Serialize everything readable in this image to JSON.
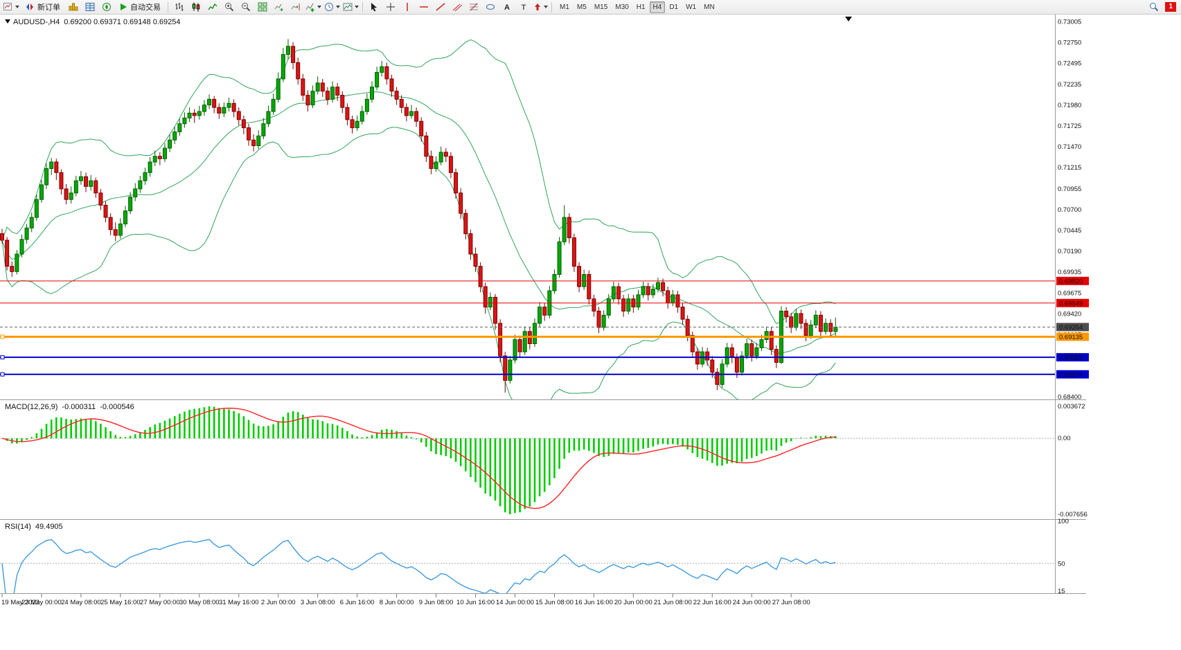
{
  "toolbar": {
    "new_order_label": "新订单",
    "autotrading_label": "自动交易",
    "glyph_text_tool": "A",
    "glyph_label_tool": "T",
    "timeframes": [
      "M1",
      "M5",
      "M15",
      "M30",
      "H1",
      "H4",
      "D1",
      "W1",
      "MN"
    ],
    "active_timeframe": "H4",
    "notifications_count": "1"
  },
  "chart_data": {
    "type": "candlestick",
    "symbol_period": "AUDUSD-,H4",
    "ohlc_text": "0.69200 0.69371 0.69148 0.69254",
    "colors": {
      "up": "#00a800",
      "up_border": "#005f00",
      "down": "#dc1414",
      "down_border": "#7a0000",
      "bollinger": "#2fa35a",
      "macd_hist": "#00cc00",
      "macd_signal": "#ff2222",
      "rsi": "#3d9be0"
    },
    "bollinger": {
      "period": 20,
      "deviation": 2
    },
    "price_axis_labels": [
      "0.73005",
      "0.72750",
      "0.72495",
      "0.72235",
      "0.71980",
      "0.71725",
      "0.71470",
      "0.71215",
      "0.70955",
      "0.70700",
      "0.70445",
      "0.70190",
      "0.69935",
      "0.69675",
      "0.69420",
      "0.69165",
      "0.68910",
      "0.68655",
      "0.68400"
    ],
    "hlines": [
      {
        "label": "0.69820",
        "price": 0.6982,
        "color": "#e60000",
        "width": 1,
        "dashed": false,
        "handle": false,
        "box": "#e60000"
      },
      {
        "label": "0.69549",
        "price": 0.69549,
        "color": "#e60000",
        "width": 1,
        "dashed": false,
        "handle": false,
        "box": "#e60000"
      },
      {
        "label": "0.69254",
        "price": 0.69254,
        "color": "#666666",
        "width": 1,
        "dashed": true,
        "handle": false,
        "box": "#4d4d4d"
      },
      {
        "label": "0.69135",
        "price": 0.69135,
        "color": "#ff9900",
        "width": 3,
        "dashed": false,
        "handle": true,
        "box": "#ff9900"
      },
      {
        "label": "0.68883",
        "price": 0.68883,
        "color": "#0000cc",
        "width": 2,
        "dashed": false,
        "handle": true,
        "box": "#0000cc"
      },
      {
        "label": "0.68674",
        "price": 0.68674,
        "color": "#0000cc",
        "width": 2,
        "dashed": false,
        "handle": true,
        "box": "#0000cc"
      }
    ],
    "time_labels": [
      "19 May 2022",
      "23 May 00:00",
      "24 May 08:00",
      "25 May 16:00",
      "27 May 00:00",
      "30 May 08:00",
      "31 May 16:00",
      "2 Jun 00:00",
      "3 Jun 08:00",
      "6 Jun 16:00",
      "8 Jun 00:00",
      "9 Jun 08:00",
      "10 Jun 16:00",
      "14 Jun 00:00",
      "15 Jun 08:00",
      "16 Jun 16:00",
      "20 Jun 00:00",
      "21 Jun 08:00",
      "22 Jun 16:00",
      "24 Jun 00:00",
      "27 Jun 08:00"
    ],
    "candles": [
      [
        0.704,
        0.7046,
        0.7028,
        0.7032
      ],
      [
        0.7032,
        0.7036,
        0.6995,
        0.7
      ],
      [
        0.7,
        0.7006,
        0.6987,
        0.69935
      ],
      [
        0.69935,
        0.702,
        0.699,
        0.7015
      ],
      [
        0.7015,
        0.7039,
        0.7011,
        0.7033
      ],
      [
        0.7033,
        0.7052,
        0.7028,
        0.7047
      ],
      [
        0.7047,
        0.7066,
        0.7042,
        0.706
      ],
      [
        0.706,
        0.7088,
        0.7056,
        0.7082
      ],
      [
        0.7082,
        0.7106,
        0.7078,
        0.71
      ],
      [
        0.71,
        0.7126,
        0.7095,
        0.712
      ],
      [
        0.712,
        0.7133,
        0.7112,
        0.7128
      ],
      [
        0.7128,
        0.7132,
        0.7106,
        0.7115
      ],
      [
        0.7115,
        0.7119,
        0.7088,
        0.7095
      ],
      [
        0.7095,
        0.7101,
        0.7076,
        0.7082
      ],
      [
        0.7082,
        0.7098,
        0.7077,
        0.709
      ],
      [
        0.709,
        0.7111,
        0.7086,
        0.7105
      ],
      [
        0.7105,
        0.7117,
        0.71,
        0.711
      ],
      [
        0.711,
        0.7115,
        0.7091,
        0.7098
      ],
      [
        0.7098,
        0.7112,
        0.7093,
        0.7105
      ],
      [
        0.7105,
        0.7109,
        0.7084,
        0.709
      ],
      [
        0.709,
        0.7095,
        0.7069,
        0.7075
      ],
      [
        0.7075,
        0.708,
        0.7054,
        0.706
      ],
      [
        0.706,
        0.7065,
        0.7038,
        0.7045
      ],
      [
        0.7045,
        0.7054,
        0.7031,
        0.7038
      ],
      [
        0.7038,
        0.7059,
        0.7034,
        0.7052
      ],
      [
        0.7052,
        0.7074,
        0.7048,
        0.7068
      ],
      [
        0.7068,
        0.7091,
        0.7064,
        0.7085
      ],
      [
        0.7085,
        0.7102,
        0.708,
        0.7095
      ],
      [
        0.7095,
        0.7111,
        0.709,
        0.7105
      ],
      [
        0.7105,
        0.7121,
        0.71,
        0.7115
      ],
      [
        0.7115,
        0.7134,
        0.711,
        0.7128
      ],
      [
        0.7128,
        0.7142,
        0.7123,
        0.7135
      ],
      [
        0.7135,
        0.714,
        0.7124,
        0.7132
      ],
      [
        0.7132,
        0.7151,
        0.7128,
        0.7145
      ],
      [
        0.7145,
        0.7162,
        0.714,
        0.7155
      ],
      [
        0.7155,
        0.7171,
        0.715,
        0.7165
      ],
      [
        0.7165,
        0.7181,
        0.716,
        0.7175
      ],
      [
        0.7175,
        0.7189,
        0.717,
        0.7182
      ],
      [
        0.7182,
        0.7195,
        0.7177,
        0.7188
      ],
      [
        0.7188,
        0.7193,
        0.7176,
        0.7185
      ],
      [
        0.7185,
        0.7197,
        0.718,
        0.719
      ],
      [
        0.719,
        0.7204,
        0.7185,
        0.7198
      ],
      [
        0.7198,
        0.7211,
        0.7193,
        0.7205
      ],
      [
        0.7205,
        0.7209,
        0.7188,
        0.7195
      ],
      [
        0.7195,
        0.72,
        0.7181,
        0.7188
      ],
      [
        0.7188,
        0.7201,
        0.7183,
        0.7195
      ],
      [
        0.7195,
        0.7207,
        0.719,
        0.72
      ],
      [
        0.72,
        0.7205,
        0.7183,
        0.719
      ],
      [
        0.719,
        0.7195,
        0.7173,
        0.718
      ],
      [
        0.718,
        0.7185,
        0.7162,
        0.717
      ],
      [
        0.717,
        0.7175,
        0.7148,
        0.7155
      ],
      [
        0.7155,
        0.7162,
        0.7141,
        0.7148
      ],
      [
        0.7148,
        0.7167,
        0.7144,
        0.716
      ],
      [
        0.716,
        0.7182,
        0.7156,
        0.7175
      ],
      [
        0.7175,
        0.7197,
        0.7171,
        0.719
      ],
      [
        0.719,
        0.7212,
        0.7186,
        0.7205
      ],
      [
        0.7205,
        0.7238,
        0.7201,
        0.723
      ],
      [
        0.723,
        0.7268,
        0.7226,
        0.726
      ],
      [
        0.726,
        0.7279,
        0.7254,
        0.727
      ],
      [
        0.727,
        0.7275,
        0.7242,
        0.725
      ],
      [
        0.725,
        0.7256,
        0.7223,
        0.723
      ],
      [
        0.723,
        0.7236,
        0.7203,
        0.721
      ],
      [
        0.721,
        0.7216,
        0.719,
        0.7198
      ],
      [
        0.7198,
        0.7222,
        0.7194,
        0.7215
      ],
      [
        0.7215,
        0.7233,
        0.7211,
        0.7225
      ],
      [
        0.7225,
        0.723,
        0.7208,
        0.7215
      ],
      [
        0.7215,
        0.722,
        0.7198,
        0.7205
      ],
      [
        0.7205,
        0.7227,
        0.7201,
        0.722
      ],
      [
        0.722,
        0.7225,
        0.7203,
        0.721
      ],
      [
        0.721,
        0.7215,
        0.7188,
        0.7195
      ],
      [
        0.7195,
        0.72,
        0.7173,
        0.718
      ],
      [
        0.718,
        0.7185,
        0.7163,
        0.717
      ],
      [
        0.717,
        0.7185,
        0.7166,
        0.7178
      ],
      [
        0.7178,
        0.7197,
        0.7174,
        0.719
      ],
      [
        0.719,
        0.7212,
        0.7186,
        0.7205
      ],
      [
        0.7205,
        0.7227,
        0.7201,
        0.722
      ],
      [
        0.722,
        0.7245,
        0.7216,
        0.7238
      ],
      [
        0.7238,
        0.7252,
        0.7233,
        0.7245
      ],
      [
        0.7245,
        0.725,
        0.7223,
        0.723
      ],
      [
        0.723,
        0.7235,
        0.7208,
        0.7215
      ],
      [
        0.7215,
        0.722,
        0.7198,
        0.7205
      ],
      [
        0.7205,
        0.721,
        0.7188,
        0.7195
      ],
      [
        0.7195,
        0.72,
        0.7178,
        0.7185
      ],
      [
        0.7185,
        0.7198,
        0.7181,
        0.719
      ],
      [
        0.719,
        0.7195,
        0.7171,
        0.7178
      ],
      [
        0.7178,
        0.7183,
        0.7153,
        0.716
      ],
      [
        0.716,
        0.7165,
        0.7128,
        0.7135
      ],
      [
        0.7135,
        0.7142,
        0.7113,
        0.712
      ],
      [
        0.712,
        0.7135,
        0.7116,
        0.7128
      ],
      [
        0.7128,
        0.7147,
        0.7124,
        0.714
      ],
      [
        0.714,
        0.7145,
        0.7128,
        0.7135
      ],
      [
        0.7135,
        0.714,
        0.7108,
        0.7115
      ],
      [
        0.7115,
        0.712,
        0.7083,
        0.709
      ],
      [
        0.709,
        0.7096,
        0.7058,
        0.7065
      ],
      [
        0.7065,
        0.707,
        0.7033,
        0.704
      ],
      [
        0.704,
        0.7045,
        0.7008,
        0.7015
      ],
      [
        0.7015,
        0.7023,
        0.6993,
        0.7
      ],
      [
        0.7,
        0.7005,
        0.6968,
        0.6975
      ],
      [
        0.6975,
        0.698,
        0.6942,
        0.695
      ],
      [
        0.695,
        0.6968,
        0.6946,
        0.6962
      ],
      [
        0.6962,
        0.6966,
        0.6922,
        0.693
      ],
      [
        0.693,
        0.6935,
        0.6882,
        0.689
      ],
      [
        0.689,
        0.6895,
        0.6845,
        0.686
      ],
      [
        0.686,
        0.689,
        0.6856,
        0.6885
      ],
      [
        0.6885,
        0.6916,
        0.6881,
        0.691
      ],
      [
        0.691,
        0.6915,
        0.6888,
        0.6895
      ],
      [
        0.6895,
        0.6926,
        0.6891,
        0.692
      ],
      [
        0.692,
        0.6925,
        0.6898,
        0.6905
      ],
      [
        0.6905,
        0.6936,
        0.6901,
        0.693
      ],
      [
        0.693,
        0.6956,
        0.6926,
        0.695
      ],
      [
        0.695,
        0.6955,
        0.6933,
        0.694
      ],
      [
        0.694,
        0.6976,
        0.6936,
        0.697
      ],
      [
        0.697,
        0.6996,
        0.6966,
        0.699
      ],
      [
        0.699,
        0.7036,
        0.6986,
        0.703
      ],
      [
        0.703,
        0.7075,
        0.7026,
        0.706
      ],
      [
        0.706,
        0.7065,
        0.7028,
        0.7035
      ],
      [
        0.7035,
        0.704,
        0.6993,
        0.7
      ],
      [
        0.7,
        0.7005,
        0.6968,
        0.6975
      ],
      [
        0.6975,
        0.6996,
        0.6971,
        0.699
      ],
      [
        0.699,
        0.6995,
        0.6953,
        0.696
      ],
      [
        0.696,
        0.6965,
        0.6938,
        0.6945
      ],
      [
        0.6945,
        0.695,
        0.6918,
        0.6925
      ],
      [
        0.6925,
        0.6946,
        0.6921,
        0.694
      ],
      [
        0.694,
        0.6966,
        0.6936,
        0.696
      ],
      [
        0.696,
        0.6981,
        0.6956,
        0.6975
      ],
      [
        0.6975,
        0.698,
        0.6953,
        0.696
      ],
      [
        0.696,
        0.6965,
        0.6938,
        0.6945
      ],
      [
        0.6945,
        0.6966,
        0.6941,
        0.696
      ],
      [
        0.696,
        0.6965,
        0.6943,
        0.695
      ],
      [
        0.695,
        0.6971,
        0.6946,
        0.6965
      ],
      [
        0.6965,
        0.6981,
        0.6961,
        0.6975
      ],
      [
        0.6975,
        0.698,
        0.6958,
        0.6965
      ],
      [
        0.6965,
        0.6978,
        0.6961,
        0.6972
      ],
      [
        0.6972,
        0.6986,
        0.6968,
        0.698
      ],
      [
        0.698,
        0.6985,
        0.6963,
        0.697
      ],
      [
        0.697,
        0.6975,
        0.6948,
        0.6955
      ],
      [
        0.6955,
        0.6971,
        0.6951,
        0.6965
      ],
      [
        0.6965,
        0.697,
        0.6943,
        0.695
      ],
      [
        0.695,
        0.6955,
        0.6928,
        0.6935
      ],
      [
        0.6935,
        0.694,
        0.6908,
        0.6915
      ],
      [
        0.6915,
        0.692,
        0.6888,
        0.6895
      ],
      [
        0.6895,
        0.69,
        0.6873,
        0.688
      ],
      [
        0.688,
        0.6901,
        0.6876,
        0.6895
      ],
      [
        0.6895,
        0.69,
        0.6878,
        0.6885
      ],
      [
        0.6885,
        0.689,
        0.6863,
        0.687
      ],
      [
        0.687,
        0.6875,
        0.6848,
        0.6855
      ],
      [
        0.6855,
        0.6886,
        0.6851,
        0.688
      ],
      [
        0.688,
        0.6906,
        0.6876,
        0.69
      ],
      [
        0.69,
        0.6905,
        0.6881,
        0.6888
      ],
      [
        0.6888,
        0.6893,
        0.6863,
        0.687
      ],
      [
        0.687,
        0.6896,
        0.6866,
        0.689
      ],
      [
        0.689,
        0.6911,
        0.6886,
        0.6905
      ],
      [
        0.6905,
        0.691,
        0.6883,
        0.689
      ],
      [
        0.689,
        0.6906,
        0.6886,
        0.69
      ],
      [
        0.69,
        0.6916,
        0.6896,
        0.691
      ],
      [
        0.691,
        0.6926,
        0.6906,
        0.692
      ],
      [
        0.692,
        0.6925,
        0.6891,
        0.6898
      ],
      [
        0.6898,
        0.6903,
        0.6875,
        0.6882
      ],
      [
        0.6882,
        0.6951,
        0.688,
        0.6945
      ],
      [
        0.6945,
        0.695,
        0.6931,
        0.6938
      ],
      [
        0.6938,
        0.6943,
        0.6918,
        0.6925
      ],
      [
        0.6925,
        0.6948,
        0.6921,
        0.6942
      ],
      [
        0.6942,
        0.6947,
        0.6923,
        0.693
      ],
      [
        0.693,
        0.6935,
        0.6908,
        0.6915
      ],
      [
        0.6915,
        0.6934,
        0.6911,
        0.6928
      ],
      [
        0.6928,
        0.6946,
        0.6924,
        0.694
      ],
      [
        0.694,
        0.6945,
        0.6913,
        0.692
      ],
      [
        0.692,
        0.6936,
        0.6916,
        0.693
      ],
      [
        0.693,
        0.6935,
        0.6913,
        0.692
      ],
      [
        0.692,
        0.69371,
        0.69148,
        0.69254
      ]
    ]
  },
  "macd": {
    "label": "MACD(12,26,9)",
    "value_main": "-0.000311",
    "value_signal": "-0.000546",
    "scale_top": "0.003672",
    "scale_zero": "0.00",
    "scale_bottom": "-0.007656"
  },
  "rsi": {
    "label": "RSI(14)",
    "value": "49.4905",
    "scale": [
      "100",
      "50",
      "15"
    ]
  }
}
